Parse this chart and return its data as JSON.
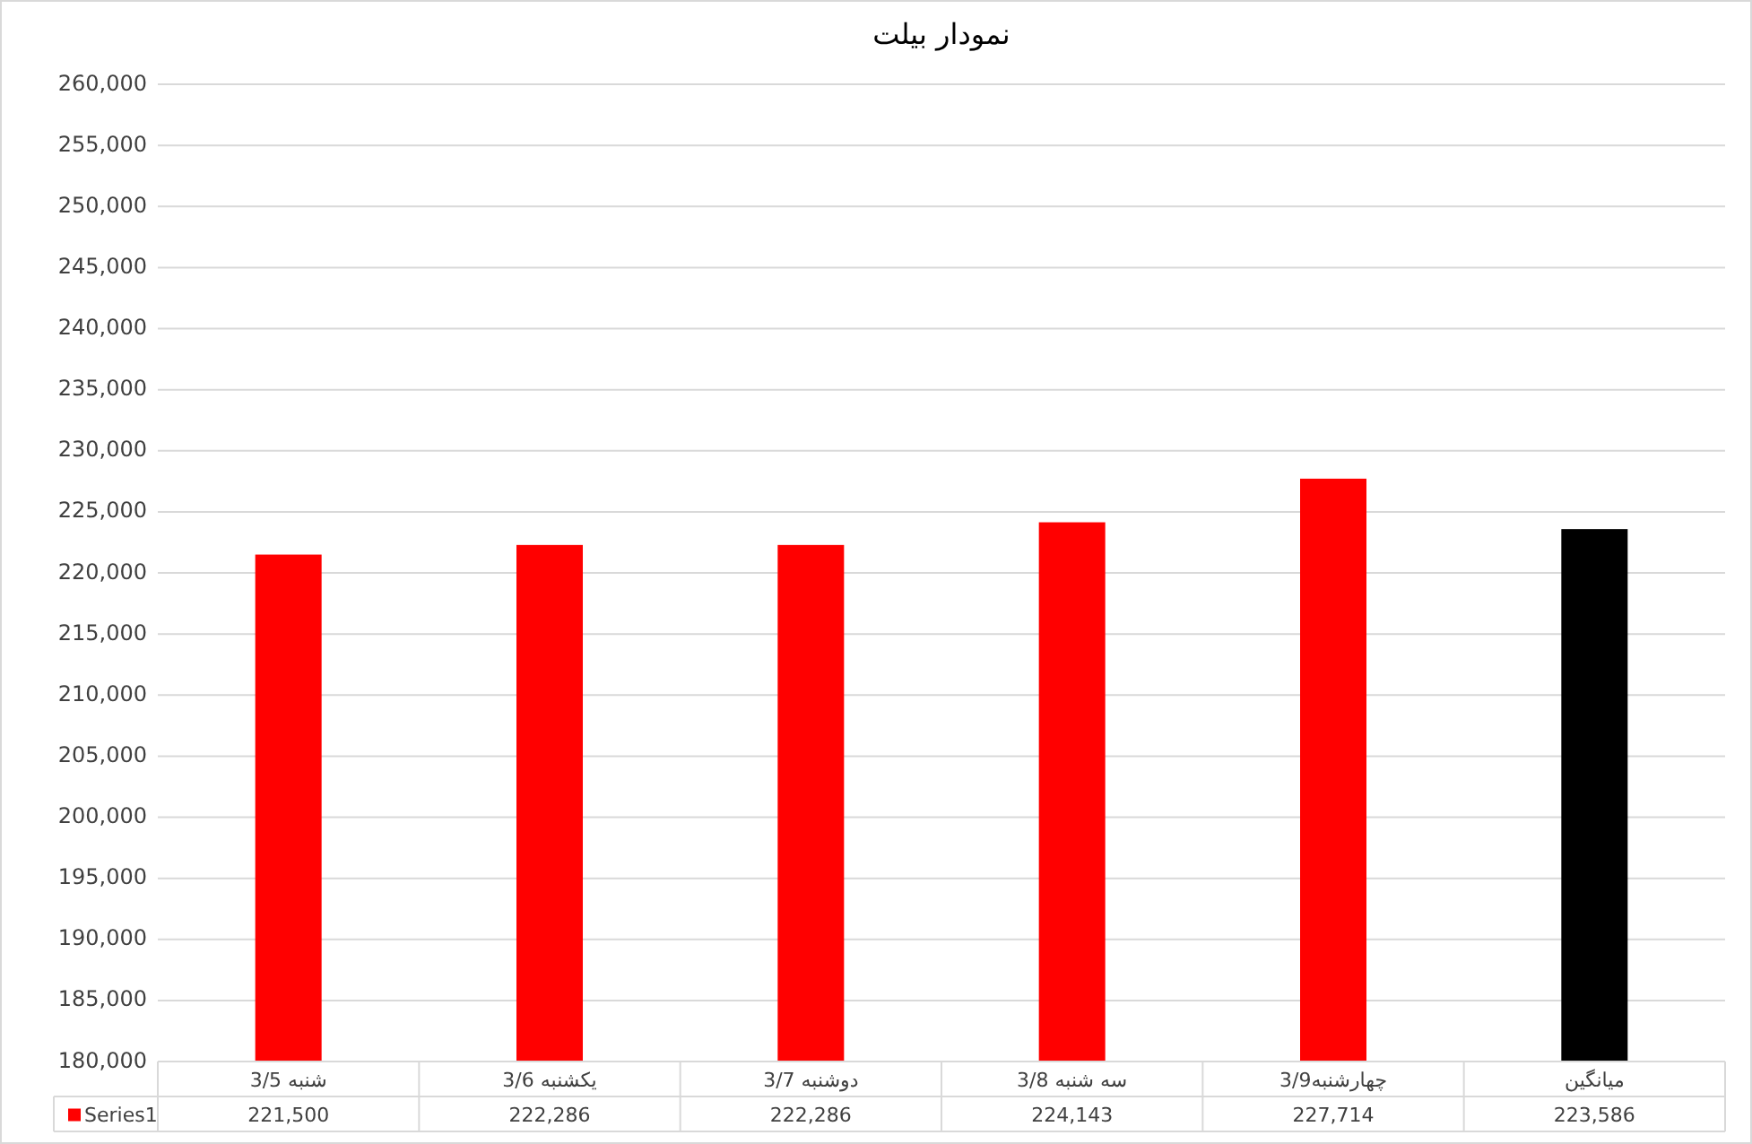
{
  "chart_data": {
    "type": "bar",
    "title": "نمودار بیلت",
    "categories": [
      "شنبه 3/5",
      "یکشنبه 3/6",
      "دوشنبه 3/7",
      "سه شنبه 3/8",
      "چهارشنبه3/9",
      "میانگین"
    ],
    "series": [
      {
        "name": "Series1",
        "color": "#ff0000",
        "colors": [
          "#ff0000",
          "#ff0000",
          "#ff0000",
          "#ff0000",
          "#ff0000",
          "#000000"
        ],
        "values": [
          221500,
          222286,
          222286,
          224143,
          227714,
          223586
        ],
        "value_labels": [
          "221,500",
          "222,286",
          "222,286",
          "224,143",
          "227,714",
          "223,586"
        ]
      }
    ],
    "ylim": [
      180000,
      260000
    ],
    "yticks": [
      {
        "value": 180000,
        "label": "180,000"
      },
      {
        "value": 185000,
        "label": "185,000"
      },
      {
        "value": 190000,
        "label": "190,000"
      },
      {
        "value": 195000,
        "label": "195,000"
      },
      {
        "value": 200000,
        "label": "200,000"
      },
      {
        "value": 205000,
        "label": "205,000"
      },
      {
        "value": 210000,
        "label": "210,000"
      },
      {
        "value": 215000,
        "label": "215,000"
      },
      {
        "value": 220000,
        "label": "220,000"
      },
      {
        "value": 225000,
        "label": "225,000"
      },
      {
        "value": 230000,
        "label": "230,000"
      },
      {
        "value": 235000,
        "label": "235,000"
      },
      {
        "value": 240000,
        "label": "240,000"
      },
      {
        "value": 245000,
        "label": "245,000"
      },
      {
        "value": 250000,
        "label": "250,000"
      },
      {
        "value": 255000,
        "label": "255,000"
      },
      {
        "value": 260000,
        "label": "260,000"
      }
    ],
    "grid": "y",
    "legend": "bottom"
  }
}
